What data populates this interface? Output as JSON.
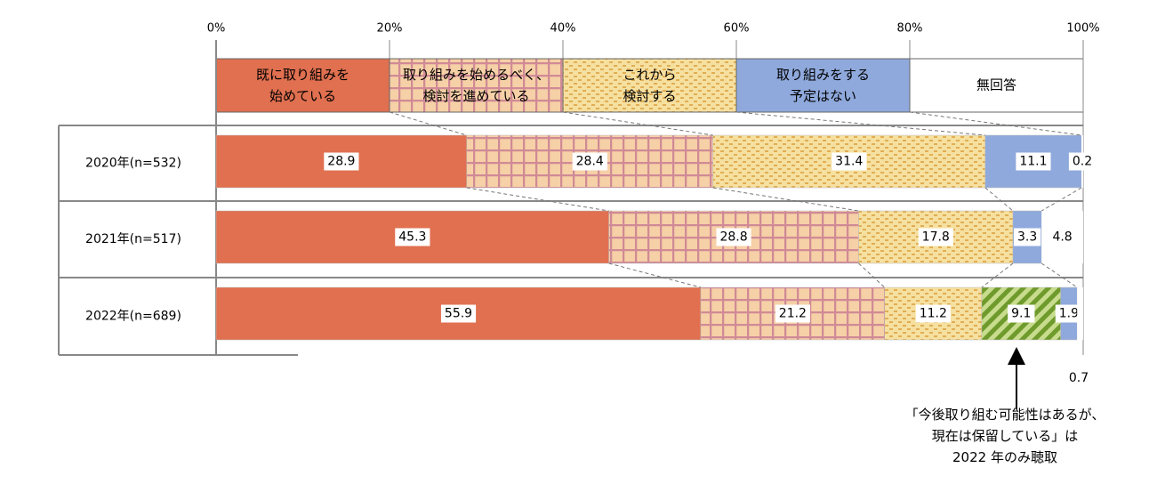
{
  "chart_data": {
    "type": "bar",
    "orientation": "horizontal",
    "stacked": true,
    "categories": [
      "2020年(n=532)",
      "2021年(n=517)",
      "2022年(n=689)"
    ],
    "xlim": [
      0,
      100
    ],
    "xticks": [
      {
        "value": 0,
        "label": "0%"
      },
      {
        "value": 20,
        "label": "20%"
      },
      {
        "value": 40,
        "label": "40%"
      },
      {
        "value": 60,
        "label": "60%"
      },
      {
        "value": 80,
        "label": "80%"
      },
      {
        "value": 100,
        "label": "100%"
      }
    ],
    "series": [
      {
        "name": "既に取り組みを\n始めている",
        "color": "#e07050",
        "pattern": "solid",
        "values": [
          28.9,
          45.3,
          55.9
        ]
      },
      {
        "name": "取り組みを始めるべく、\n検討を進めている",
        "color": "#f6d0a6",
        "pattern": "grid",
        "values": [
          28.4,
          28.8,
          21.2
        ]
      },
      {
        "name": "これから\n検討する",
        "color": "#f6e0a0",
        "pattern": "dots",
        "values": [
          31.4,
          17.8,
          11.2
        ]
      },
      {
        "color": "#8aab3c",
        "pattern": "stripes",
        "values": [
          null,
          null,
          9.1
        ]
      },
      {
        "name": "取り組みをする\n予定はない",
        "color": "#8fa9dc",
        "pattern": "solid",
        "values": [
          11.1,
          3.3,
          1.9
        ]
      },
      {
        "name": "無回答",
        "color": "#ffffff",
        "pattern": "solid",
        "values": [
          0.2,
          4.8,
          0.7
        ]
      }
    ],
    "annotation": "「今後取り組む可能性はあるが、\n現在は保留している」は\n2022 年のみ聴取"
  }
}
